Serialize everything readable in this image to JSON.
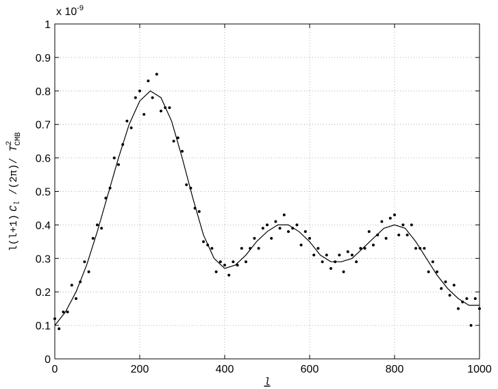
{
  "chart_data": {
    "type": "scatter",
    "xlabel": "l",
    "ylabel": [
      "l(l+1)",
      "C",
      "l",
      " /(2π)/ ",
      "T",
      "2",
      "CMB"
    ],
    "y_multiplier": {
      "base": "x 10",
      "exponent": "-9"
    },
    "xlim": [
      0,
      1000
    ],
    "xticks": [
      0,
      200,
      400,
      600,
      800,
      1000
    ],
    "ylim": [
      0,
      1
    ],
    "yticks": [
      0,
      0.1,
      0.2,
      0.3,
      0.4,
      0.5,
      0.6,
      0.7,
      0.8,
      0.9,
      1
    ],
    "grid": true,
    "series": [
      {
        "style": "markers",
        "color": "#000000",
        "x": [
          0,
          10,
          20,
          30,
          40,
          50,
          60,
          70,
          80,
          90,
          100,
          110,
          120,
          130,
          140,
          150,
          160,
          170,
          180,
          190,
          200,
          210,
          220,
          230,
          240,
          250,
          260,
          270,
          280,
          290,
          300,
          310,
          320,
          330,
          340,
          350,
          360,
          370,
          380,
          390,
          400,
          410,
          420,
          430,
          440,
          450,
          460,
          470,
          480,
          490,
          500,
          510,
          520,
          530,
          540,
          550,
          560,
          570,
          580,
          590,
          600,
          610,
          620,
          630,
          640,
          650,
          660,
          670,
          680,
          690,
          700,
          710,
          720,
          730,
          740,
          750,
          760,
          770,
          780,
          790,
          800,
          810,
          820,
          830,
          840,
          850,
          860,
          870,
          880,
          890,
          900,
          910,
          920,
          930,
          940,
          950,
          960,
          970,
          980,
          990,
          1000
        ],
        "y": [
          0.12,
          0.09,
          0.14,
          0.14,
          0.22,
          0.18,
          0.23,
          0.29,
          0.26,
          0.36,
          0.4,
          0.39,
          0.48,
          0.51,
          0.6,
          0.58,
          0.64,
          0.71,
          0.69,
          0.78,
          0.8,
          0.73,
          0.83,
          0.78,
          0.85,
          0.74,
          0.75,
          0.75,
          0.65,
          0.66,
          0.62,
          0.52,
          0.51,
          0.45,
          0.44,
          0.35,
          0.34,
          0.33,
          0.26,
          0.29,
          0.28,
          0.25,
          0.29,
          0.28,
          0.33,
          0.29,
          0.33,
          0.36,
          0.33,
          0.39,
          0.4,
          0.36,
          0.41,
          0.39,
          0.43,
          0.38,
          0.39,
          0.4,
          0.34,
          0.38,
          0.36,
          0.31,
          0.33,
          0.29,
          0.31,
          0.27,
          0.29,
          0.31,
          0.26,
          0.32,
          0.31,
          0.29,
          0.33,
          0.33,
          0.38,
          0.34,
          0.37,
          0.41,
          0.36,
          0.42,
          0.43,
          0.37,
          0.4,
          0.37,
          0.4,
          0.33,
          0.33,
          0.33,
          0.26,
          0.29,
          0.26,
          0.21,
          0.23,
          0.19,
          0.22,
          0.15,
          0.17,
          0.18,
          0.1,
          0.18,
          0.15
        ]
      },
      {
        "style": "line",
        "color": "#000000",
        "x": [
          0,
          25,
          50,
          75,
          100,
          125,
          150,
          175,
          200,
          225,
          250,
          275,
          300,
          325,
          350,
          375,
          400,
          425,
          450,
          475,
          500,
          525,
          550,
          575,
          600,
          625,
          650,
          675,
          700,
          725,
          750,
          775,
          800,
          825,
          850,
          875,
          900,
          925,
          950,
          975,
          1000
        ],
        "y": [
          0.1,
          0.14,
          0.2,
          0.28,
          0.38,
          0.49,
          0.6,
          0.7,
          0.77,
          0.8,
          0.78,
          0.71,
          0.6,
          0.48,
          0.37,
          0.3,
          0.27,
          0.28,
          0.31,
          0.35,
          0.38,
          0.4,
          0.4,
          0.38,
          0.35,
          0.31,
          0.29,
          0.29,
          0.3,
          0.33,
          0.36,
          0.39,
          0.4,
          0.39,
          0.35,
          0.3,
          0.25,
          0.21,
          0.18,
          0.16,
          0.16
        ]
      }
    ]
  }
}
